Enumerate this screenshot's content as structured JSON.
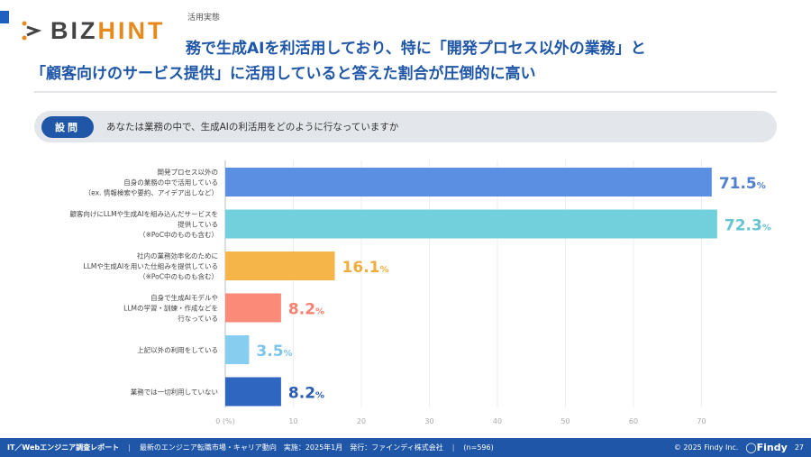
{
  "header": {
    "logo_text": "BIZHINT",
    "subtitle": "活用実態",
    "title_line1": "務で生成AIを利活用しており、特に「開発プロセス以外の業務」と",
    "title_line2": "「顧客向けのサービス提供」に活用していると答えた割合が圧倒的に高い"
  },
  "question": {
    "badge": "設問",
    "text": "あなたは業務の中で、生成AIの利活用をどのように行なっていますか"
  },
  "chart_data": {
    "type": "bar",
    "orientation": "horizontal",
    "categories": [
      [
        "開発プロセス以外の",
        "自身の業務の中で活用している",
        "（ex. 情報検索や要約、アイデア出しなど）"
      ],
      [
        "顧客向けにLLMや生成AIを組み込んだサービスを",
        "提供している",
        "（※PoC中のものも含む）"
      ],
      [
        "社内の業務効率化のために",
        "LLMや生成AIを用いた仕組みを提供している",
        "（※PoC中のものも含む）"
      ],
      [
        "自身で生成AIモデルや",
        "LLMの学習・訓練・作成などを",
        "行なっている"
      ],
      [
        "上記以外の利用をしている"
      ],
      [
        "業務では一切利用していない"
      ]
    ],
    "values": [
      71.5,
      72.3,
      16.1,
      8.2,
      3.5,
      8.2
    ],
    "value_labels": [
      "71.5",
      "72.3",
      "16.1",
      "8.2",
      "3.5",
      "8.2"
    ],
    "unit": "%",
    "colors": [
      "#5b8fe2",
      "#72d0dc",
      "#f5b548",
      "#fb8a78",
      "#86cdf0",
      "#2f66c0"
    ],
    "label_colors": [
      "#4f7fd0",
      "#66c4d2",
      "#f0ad3e",
      "#f58170",
      "#7cc4ea",
      "#2a5cb4"
    ],
    "xticks": [
      "0 (%)",
      "10",
      "20",
      "30",
      "40",
      "50",
      "60",
      "70"
    ],
    "xlim": [
      0,
      81
    ],
    "grid": true
  },
  "footer": {
    "report": "IT／Webエンジニア調査レポート",
    "desc": "最新のエンジニア転職市場・キャリア動向　実施：2025年1月　発行：ファインディ株式会社",
    "n": "(n=596)",
    "copyright": "© 2025 Findy Inc.",
    "brand": "Findy",
    "page": "27"
  }
}
